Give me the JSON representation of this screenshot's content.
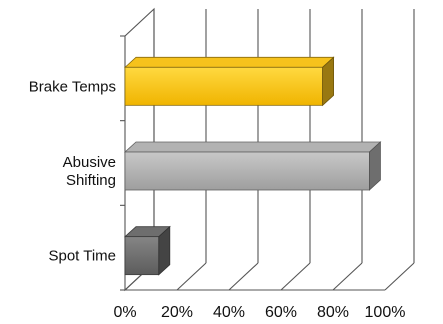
{
  "chart_data": {
    "type": "bar",
    "orientation": "horizontal",
    "style": "3d",
    "categories": [
      "Brake Temps",
      "Abusive Shifting",
      "Spot Time"
    ],
    "category_label_lines": [
      [
        "Brake Temps"
      ],
      [
        "Abusive",
        "Shifting"
      ],
      [
        "Spot Time"
      ]
    ],
    "values": [
      76,
      94,
      13
    ],
    "xlim": [
      0,
      100
    ],
    "x_ticks": [
      "0%",
      "20%",
      "40%",
      "60%",
      "80%",
      "100%"
    ],
    "bar_colors": [
      "#f6c21c",
      "#b2b2b2",
      "#6e6e6e"
    ],
    "grid": true,
    "legend": "none"
  }
}
